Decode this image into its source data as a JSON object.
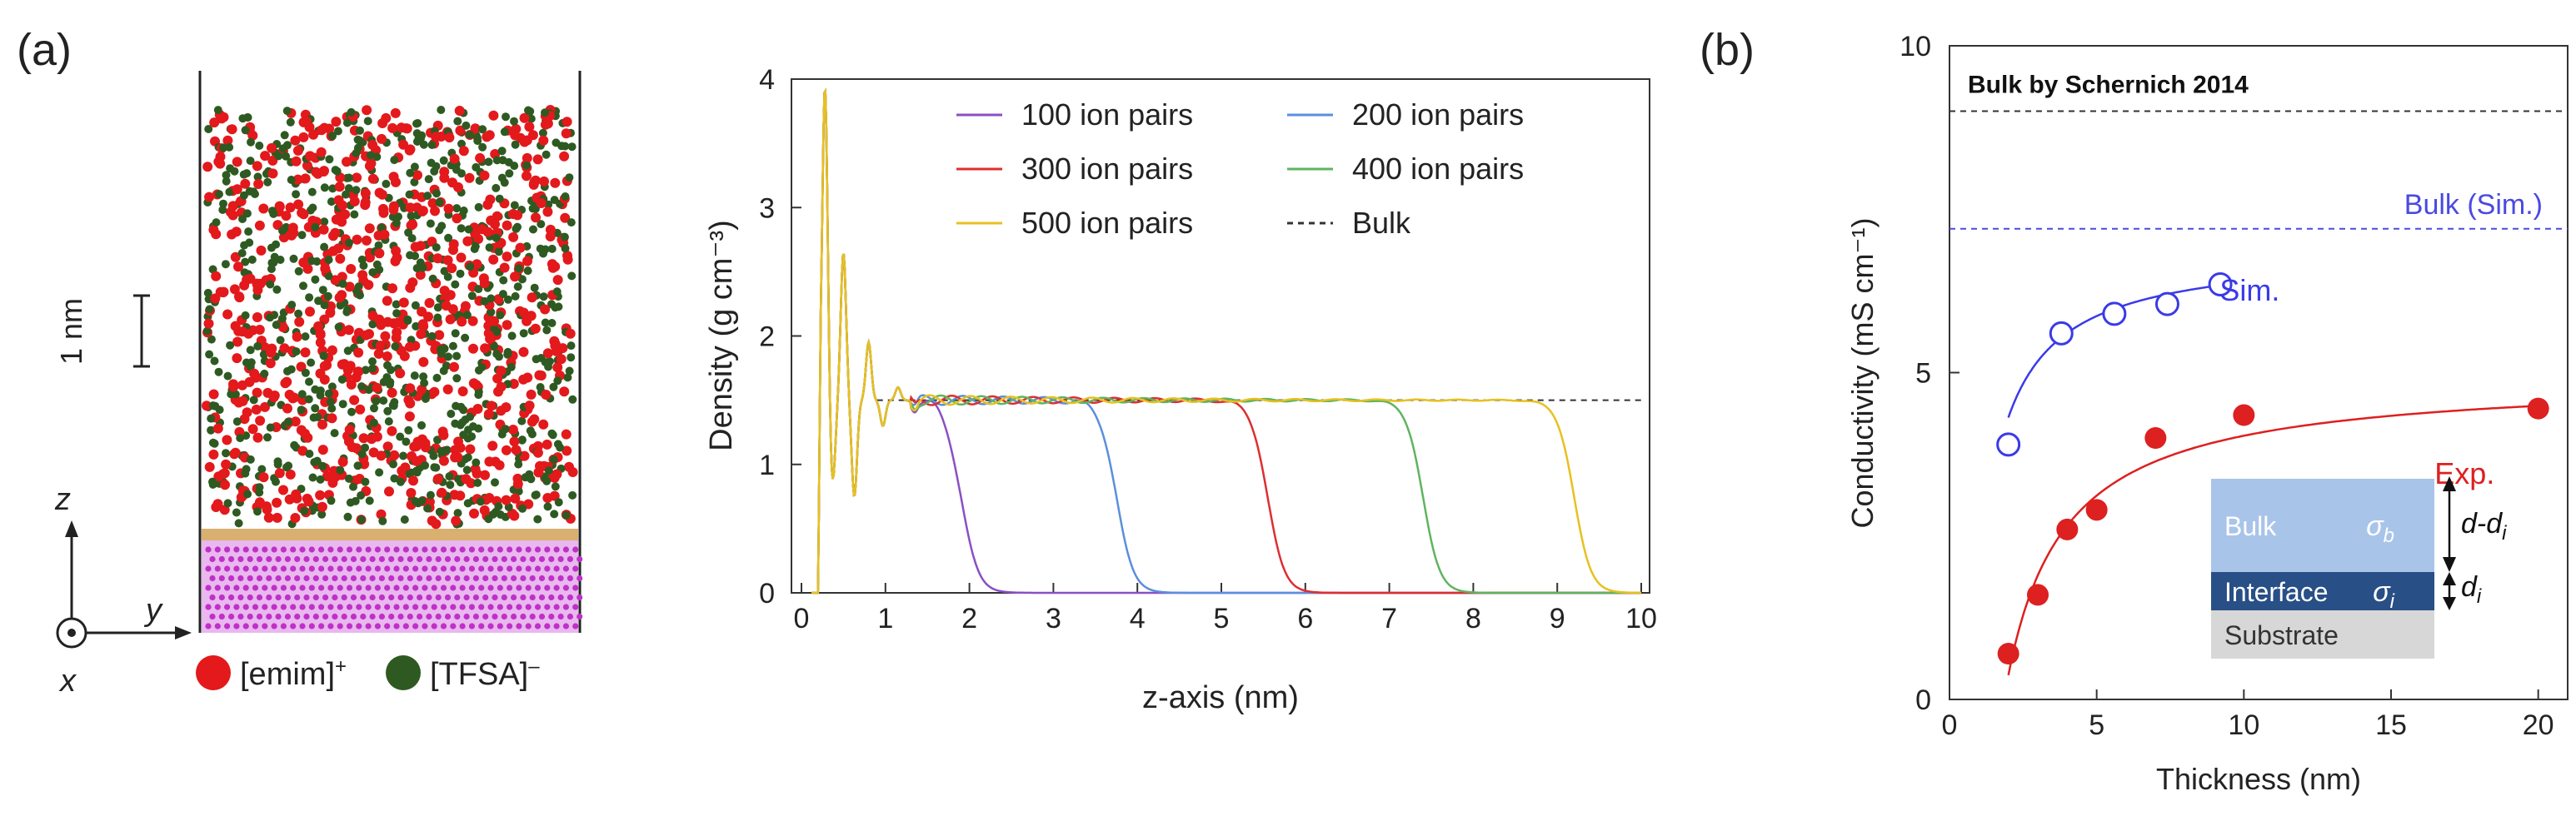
{
  "panel_labels": {
    "a": "(a)",
    "b": "(b)"
  },
  "snapshot": {
    "scale_bar_label": "1 nm",
    "axes": {
      "z": "z",
      "y": "y",
      "x": "x"
    },
    "legend": [
      {
        "label": "[emim]",
        "sup": "+",
        "color": "#e3191c"
      },
      {
        "label": "[TFSA]",
        "sup": "–",
        "color": "#2e5a22"
      }
    ],
    "colors": {
      "cation": "#e3191c",
      "anion": "#2e5a22",
      "substrate_atom": "#c030c8",
      "substrate_bg": "#e8b8ee",
      "substrate_top": "#d9b070"
    }
  },
  "chart_data": [
    {
      "type": "line",
      "title": "",
      "xlabel": "z-axis (nm)",
      "ylabel": "Density (g cm⁻³)",
      "xlim": [
        0,
        10
      ],
      "ylim": [
        0,
        4
      ],
      "x_ticks": [
        "0",
        "1",
        "2",
        "3",
        "4",
        "5",
        "6",
        "7",
        "8",
        "9",
        "10"
      ],
      "y_ticks": [
        "0",
        "1",
        "2",
        "3",
        "4"
      ],
      "bulk_density": 1.5,
      "legend": [
        {
          "name": "100 ion pairs",
          "color": "#8a4fc4"
        },
        {
          "name": "200 ion pairs",
          "color": "#5a8fdd"
        },
        {
          "name": "300 ion pairs",
          "color": "#dd2f30"
        },
        {
          "name": "400 ion pairs",
          "color": "#5fb45f"
        },
        {
          "name": "500 ion pairs",
          "color": "#e8c020"
        },
        {
          "name": "Bulk",
          "color": "#333333"
        }
      ],
      "series": [
        {
          "name": "100 ion pairs",
          "color": "#8a4fc4",
          "edge_nm": 1.9
        },
        {
          "name": "200 ion pairs",
          "color": "#5a8fdd",
          "edge_nm": 3.75
        },
        {
          "name": "300 ion pairs",
          "color": "#dd2f30",
          "edge_nm": 5.55
        },
        {
          "name": "400 ion pairs",
          "color": "#5fb45f",
          "edge_nm": 7.4
        },
        {
          "name": "500 ion pairs",
          "color": "#e8c020",
          "edge_nm": 9.2
        }
      ],
      "peaks": [
        {
          "x": 0.28,
          "y": 3.95
        },
        {
          "x": 0.37,
          "y": 0.85
        },
        {
          "x": 0.5,
          "y": 2.65
        },
        {
          "x": 0.63,
          "y": 0.75
        },
        {
          "x": 0.8,
          "y": 1.95
        },
        {
          "x": 0.97,
          "y": 1.3
        },
        {
          "x": 1.15,
          "y": 1.6
        },
        {
          "x": 1.35,
          "y": 1.45
        }
      ]
    },
    {
      "type": "scatter",
      "title": "",
      "xlabel": "Thickness (nm)",
      "ylabel": "Conductivity (mS cm⁻¹)",
      "xlim": [
        0,
        21
      ],
      "ylim": [
        0,
        10
      ],
      "x_ticks": [
        "0",
        "5",
        "10",
        "15",
        "20"
      ],
      "y_ticks": [
        "0",
        "5",
        "10"
      ],
      "reference_lines": [
        {
          "label": "Bulk by Schernich 2014",
          "value": 9.0,
          "color": "#333333"
        },
        {
          "label": "Bulk (Sim.)",
          "value": 7.2,
          "color": "#4a4ae0"
        }
      ],
      "series": [
        {
          "name": "Sim.",
          "color": "#3a3ae8",
          "marker": "open-circle",
          "x": [
            2.0,
            3.8,
            5.6,
            7.4,
            9.2
          ],
          "y": [
            3.9,
            5.6,
            5.9,
            6.05,
            6.35
          ],
          "fit": {
            "sigma_b": 6.9,
            "d_i": 0.75
          }
        },
        {
          "name": "Exp.",
          "color": "#dd2020",
          "marker": "filled-circle",
          "x": [
            2.0,
            3.0,
            4.0,
            5.0,
            7.0,
            10.0,
            20.0
          ],
          "y": [
            0.7,
            1.6,
            2.6,
            2.9,
            4.0,
            4.35,
            4.45
          ],
          "fit": {
            "sigma_b": 4.95,
            "d_i": 1.85
          }
        }
      ],
      "inset": {
        "layers": [
          {
            "label": "Bulk",
            "symbol": "σ",
            "subscript": "b",
            "color": "#a9c4e9",
            "text_color": "#ffffff"
          },
          {
            "label": "Interface",
            "symbol": "σ",
            "subscript": "i",
            "color": "#284f86",
            "text_color": "#ffffff"
          },
          {
            "label": "Substrate",
            "symbol": "",
            "subscript": "",
            "color": "#d7d7d7",
            "text_color": "#333333"
          }
        ],
        "dimension_top": "d-d",
        "dimension_top_sub": "i",
        "dimension_bottom": "d",
        "dimension_bottom_sub": "i"
      }
    }
  ]
}
